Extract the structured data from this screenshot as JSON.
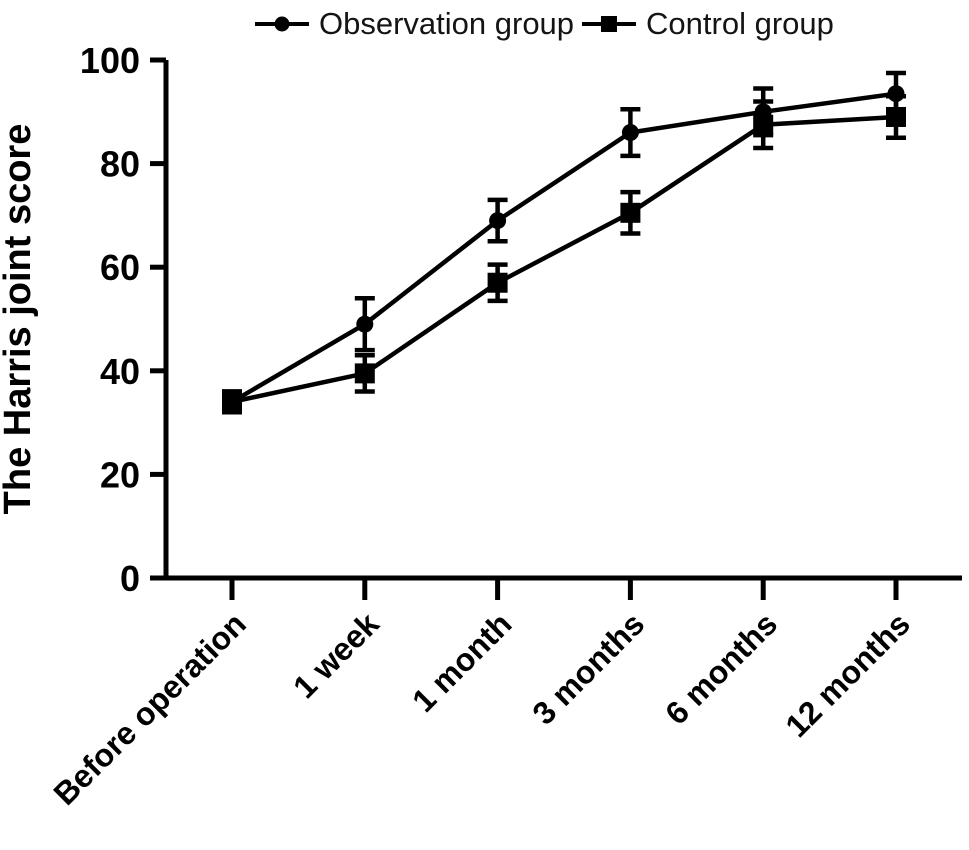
{
  "chart_data": {
    "type": "line",
    "title": "",
    "xlabel": "",
    "ylabel": "The Harris joint score",
    "categories": [
      "Before operation",
      "1 week",
      "1 month",
      "3 months",
      "6 months",
      "12 months"
    ],
    "series": [
      {
        "name": "Observation group",
        "marker": "circle",
        "values": [
          34,
          49,
          69,
          86,
          90,
          93.5
        ],
        "errors": [
          2,
          5,
          4,
          4.5,
          4.5,
          4
        ]
      },
      {
        "name": "Control group",
        "marker": "square",
        "values": [
          34,
          39.5,
          57,
          70.5,
          87.5,
          89
        ],
        "errors": [
          2,
          3.5,
          3.5,
          4,
          4.5,
          4
        ]
      }
    ],
    "ylim": [
      0,
      100
    ],
    "yticks": [
      0,
      20,
      40,
      60,
      80,
      100
    ],
    "grid": false,
    "legend_position": "top",
    "color": "#000000",
    "background": "#ffffff"
  }
}
